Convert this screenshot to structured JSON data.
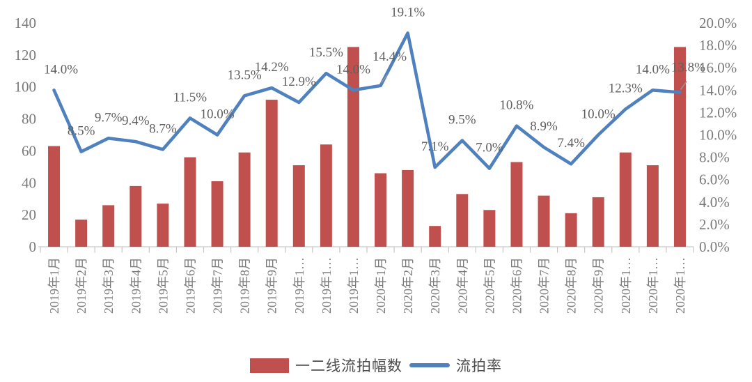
{
  "chart_data": {
    "type": "combo bar+line",
    "categories": [
      "2019年1月",
      "2019年2月",
      "2019年3月",
      "2019年4月",
      "2019年5月",
      "2019年6月",
      "2019年7月",
      "2019年8月",
      "2019年9月",
      "2019年1…",
      "2019年1…",
      "2019年1…",
      "2020年1月",
      "2020年2月",
      "2020年3月",
      "2020年4月",
      "2020年5月",
      "2020年6月",
      "2020年7月",
      "2020年8月",
      "2020年9月",
      "2020年1…",
      "2020年1…",
      "2020年1…"
    ],
    "series": [
      {
        "name": "一二线流拍幅数",
        "type": "bar",
        "axis": "left",
        "color": "#C0504D",
        "values": [
          63,
          17,
          26,
          38,
          27,
          56,
          41,
          59,
          92,
          51,
          64,
          125,
          46,
          48,
          13,
          33,
          23,
          53,
          32,
          21,
          31,
          59,
          51,
          125
        ]
      },
      {
        "name": "流拍率",
        "type": "line",
        "axis": "right",
        "color": "#4E81BD",
        "values": [
          14.0,
          8.5,
          9.7,
          9.4,
          8.7,
          11.5,
          10.0,
          13.5,
          14.2,
          12.9,
          15.5,
          14.0,
          14.4,
          19.1,
          7.1,
          9.5,
          7.0,
          10.8,
          8.9,
          7.4,
          10.0,
          12.3,
          14.0,
          13.8
        ],
        "data_labels": [
          "14.0%",
          "8.5%",
          "9.7%",
          "9.4%",
          "8.7%",
          "11.5%",
          "10.0%",
          "13.5%",
          "14.2%",
          "12.9%",
          "15.5%",
          "14.0%",
          "14.4%",
          "19.1%",
          "7.1%",
          "9.5%",
          "7.0%",
          "10.8%",
          "8.9%",
          "7.4%",
          "10.0%",
          "12.3%",
          "14.0%",
          "13.8%"
        ]
      }
    ],
    "left_axis": {
      "min": 0,
      "max": 140,
      "step": 20,
      "tick_labels": [
        "0",
        "20",
        "40",
        "60",
        "80",
        "100",
        "120",
        "140"
      ]
    },
    "right_axis": {
      "min": 0,
      "max": 20,
      "step": 2,
      "tick_labels": [
        "0.0%",
        "2.0%",
        "4.0%",
        "6.0%",
        "8.0%",
        "10.0%",
        "12.0%",
        "14.0%",
        "16.0%",
        "18.0%",
        "20.0%"
      ]
    },
    "grid": "off",
    "legend_position": "bottom",
    "label_offsets": {
      "0": {
        "dx": 10
      },
      "12": {
        "dx": 13,
        "dy": -12,
        "leader": true
      },
      "23": {
        "dx": 12,
        "dy": -6,
        "leader": true
      }
    }
  },
  "legend": {
    "bar_label": "一二线流拍幅数",
    "line_label": "流拍率"
  },
  "colors": {
    "bar": "#C0504D",
    "line": "#4E81BD",
    "axis_text": "#7a7a7a",
    "data_label_text": "#5f5f5f",
    "axis_line": "#d2d2d2",
    "tick": "#c6c6c6",
    "leader": "#999999"
  }
}
